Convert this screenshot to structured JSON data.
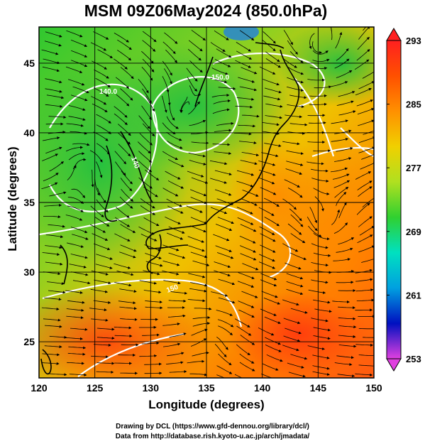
{
  "title": "MSM 09Z06May2024 (850.0hPa)",
  "xlabel": "Longitude (degrees)",
  "ylabel": "Latitude  (degrees)",
  "credits": {
    "line1": "Drawing by DCL (https://www.gfd-dennou.org/library/dcl/)",
    "line2": "Data from http://database.rish.kyoto-u.ac.jp/arch/jmadata/"
  },
  "map": {
    "lon_range": [
      120,
      150
    ],
    "lat_range": [
      22.4,
      47.6
    ],
    "lon_ticks": [
      "120",
      "125",
      "130",
      "135",
      "140",
      "145",
      "150"
    ],
    "lat_ticks": [
      "25",
      "30",
      "35",
      "40",
      "45"
    ],
    "contour_labels": [
      "140.0",
      "150.0",
      "140",
      "150"
    ]
  },
  "colorbar": {
    "ticks": [
      "293",
      "285",
      "277",
      "269",
      "261",
      "253"
    ],
    "min": 253,
    "max": 293,
    "colors": [
      "#e040e0",
      "#0010c0",
      "#00a0e0",
      "#00e0c0",
      "#30d030",
      "#b0e020",
      "#f0d000",
      "#ff9000",
      "#ff5000",
      "#ff2020"
    ]
  }
}
